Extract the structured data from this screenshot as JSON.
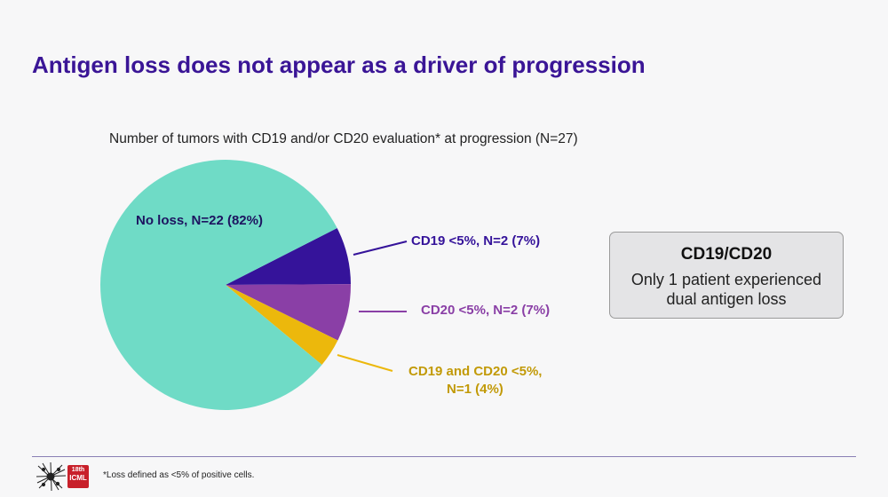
{
  "slide": {
    "title": "Antigen loss does not appear as a driver of progression"
  },
  "chart_data": {
    "type": "pie",
    "title": "Number of tumors with CD19 and/or CD20 evaluation* at progression (N=27)",
    "slices": [
      {
        "name": "No loss",
        "label": "No loss, N=22 (82%)",
        "value": 22,
        "percent": 82,
        "color": "#6fdbc6"
      },
      {
        "name": "CD19 <5%",
        "label": "CD19 <5%, N=2 (7%)",
        "value": 2,
        "percent": 7,
        "color": "#35139a"
      },
      {
        "name": "CD20 <5%",
        "label": "CD20 <5%, N=2 (7%)",
        "value": 2,
        "percent": 7,
        "color": "#8a3fa6"
      },
      {
        "name": "CD19 and CD20 <5%",
        "label_lines": [
          "CD19 and CD20 <5%,",
          "N=1 (4%)"
        ],
        "value": 1,
        "percent": 4,
        "color": "#ecb80c"
      }
    ],
    "label_colors": {
      "no_loss": "#1d1460",
      "cd19": "#35139a",
      "cd20": "#8a3fa6",
      "both": "#c29a08"
    }
  },
  "callout": {
    "title": "CD19/CD20",
    "lines": [
      "Only 1 patient experienced",
      "dual antigen loss"
    ]
  },
  "footer": {
    "logo_text": [
      "18th",
      "ICML"
    ],
    "footnote": "*Loss defined as <5% of positive cells."
  }
}
